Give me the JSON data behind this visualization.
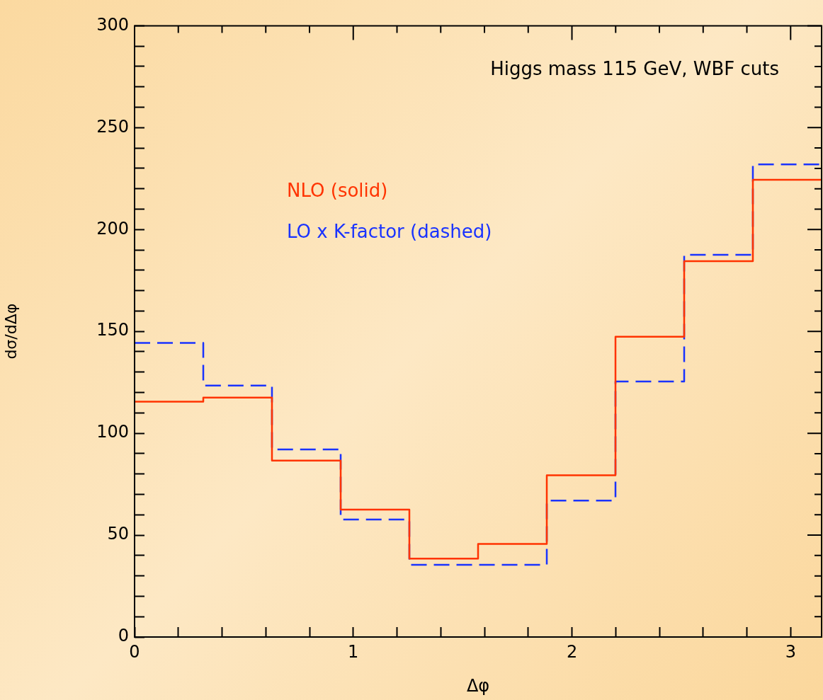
{
  "chart_data": {
    "type": "histogram",
    "xlabel": "Δφ",
    "ylabel": "dσ/dΔφ",
    "bins": [
      0,
      0.3142,
      0.6283,
      0.9425,
      1.2566,
      1.5708,
      1.885,
      2.1991,
      2.5133,
      2.8274,
      3.1416
    ],
    "series": [
      {
        "name": "NLO (solid)",
        "color": "#ff3300",
        "line_style": "solid",
        "values": [
          115.5,
          117.5,
          86.6,
          62.5,
          38.5,
          45.7,
          79.4,
          147.4,
          184.5,
          224.4
        ]
      },
      {
        "name": "LO x K-factor (dashed)",
        "color": "#1a33ff",
        "line_style": "dashed",
        "values": [
          144.3,
          123.4,
          92.1,
          57.7,
          35.4,
          35.4,
          67,
          125.4,
          187.6,
          232
        ]
      }
    ],
    "xlim": [
      0,
      3.1416
    ],
    "xticks": [
      0,
      {
        "value": 0.2,
        "label": null
      },
      {
        "value": 0.4,
        "label": null
      },
      {
        "value": 0.6,
        "label": null
      },
      {
        "value": 0.8,
        "label": null
      },
      1,
      {
        "value": 1.2,
        "label": null
      },
      {
        "value": 1.4,
        "label": null
      },
      {
        "value": 1.6,
        "label": null
      },
      {
        "value": 1.8,
        "label": null
      },
      2,
      {
        "value": 2.2,
        "label": null
      },
      {
        "value": 2.4,
        "label": null
      },
      {
        "value": 2.6,
        "label": null
      },
      {
        "value": 2.8,
        "label": null
      },
      3
    ],
    "ylim": [
      0,
      300
    ],
    "yticks": [
      0,
      {
        "value": 10,
        "label": null
      },
      {
        "value": 20,
        "label": null
      },
      {
        "value": 30,
        "label": null
      },
      {
        "value": 40,
        "label": null
      },
      50,
      {
        "value": 60,
        "label": null
      },
      {
        "value": 70,
        "label": null
      },
      {
        "value": 80,
        "label": null
      },
      {
        "value": 90,
        "label": null
      },
      100,
      {
        "value": 110,
        "label": null
      },
      {
        "value": 120,
        "label": null
      },
      {
        "value": 130,
        "label": null
      },
      {
        "value": 140,
        "label": null
      },
      150,
      {
        "value": 160,
        "label": null
      },
      {
        "value": 170,
        "label": null
      },
      {
        "value": 180,
        "label": null
      },
      {
        "value": 190,
        "label": null
      },
      200,
      {
        "value": 210,
        "label": null
      },
      {
        "value": 220,
        "label": null
      },
      {
        "value": 230,
        "label": null
      },
      {
        "value": 240,
        "label": null
      },
      250,
      {
        "value": 260,
        "label": null
      },
      {
        "value": 270,
        "label": null
      },
      {
        "value": 280,
        "label": null
      },
      {
        "value": 290,
        "label": null
      },
      300
    ],
    "grid": false,
    "legend": "top left",
    "annotations": [
      "Higgs mass 115 GeV, WBF cuts"
    ]
  }
}
